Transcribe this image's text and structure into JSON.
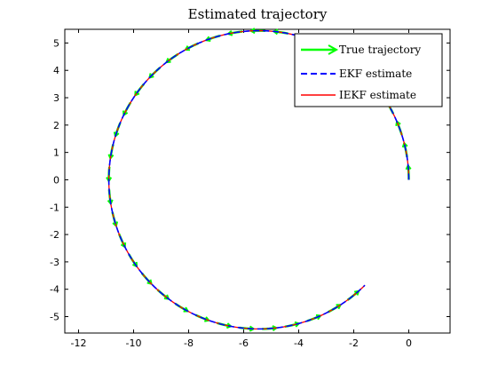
{
  "chart_data": {
    "type": "line",
    "title": "Estimated trajectory",
    "xlabel": "",
    "ylabel": "",
    "xlim": [
      -12.5,
      1.5
    ],
    "ylim": [
      -5.6,
      5.5
    ],
    "xticks": [
      -12,
      -10,
      -8,
      -6,
      -4,
      -2,
      0
    ],
    "yticks": [
      -5,
      -4,
      -3,
      -2,
      -1,
      0,
      1,
      2,
      3,
      4,
      5
    ],
    "grid": false,
    "legend": {
      "placement": "top-right"
    },
    "trajectory": {
      "center": [
        -5.45,
        0
      ],
      "radius": 5.45,
      "start_angle_deg": 0,
      "end_angle_deg": 315
    },
    "series": [
      {
        "name": "True trajectory",
        "style": "arrows",
        "color": "#00ff00"
      },
      {
        "name": "EKF estimate",
        "style": "dashed",
        "color": "#0000ff"
      },
      {
        "name": "IEKF estimate",
        "style": "solid",
        "color": "#ff0000"
      }
    ]
  }
}
